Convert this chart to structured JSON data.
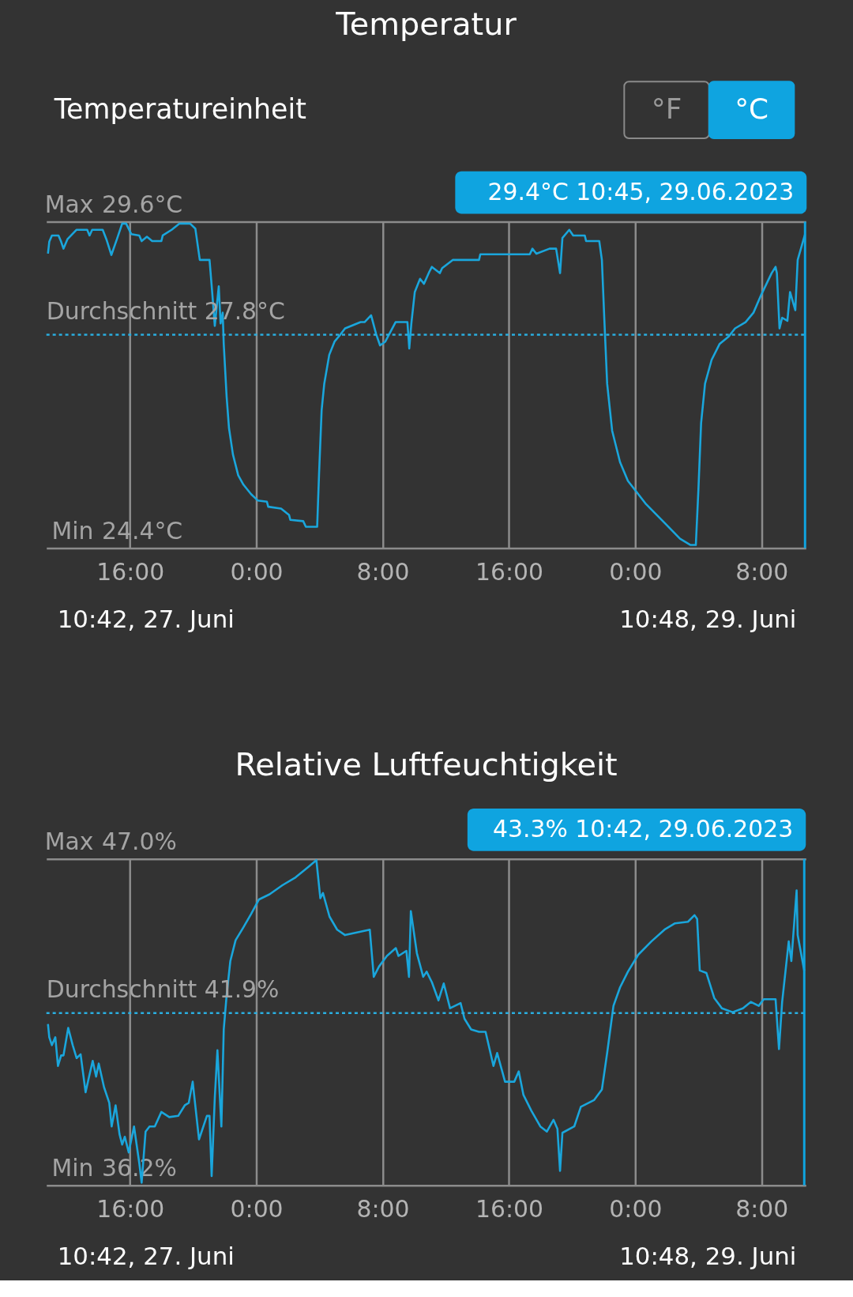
{
  "chart_data": [
    {
      "type": "line",
      "title": "Temperatur",
      "subtitle": "Temperatureinheit",
      "x": [
        "2023-06-27T10:48",
        "2023-06-27T10:53",
        "2023-06-27T11:03",
        "2023-06-27T11:28",
        "2023-06-27T11:38",
        "2023-06-27T11:47",
        "2023-06-27T12:02",
        "2023-06-27T12:36",
        "2023-06-27T13:17",
        "2023-06-27T13:26",
        "2023-06-27T13:36",
        "2023-06-27T14:16",
        "2023-06-27T14:30",
        "2023-06-27T14:49",
        "2023-06-27T15:10",
        "2023-06-27T15:30",
        "2023-06-27T15:45",
        "2023-06-27T16:05",
        "2023-06-27T16:35",
        "2023-06-27T16:44",
        "2023-06-27T17:04",
        "2023-06-27T17:24",
        "2023-06-27T17:59",
        "2023-06-27T18:04",
        "2023-06-27T18:38",
        "2023-06-27T19:08",
        "2023-06-27T19:48",
        "2023-06-27T20:08",
        "2023-06-27T20:25",
        "2023-06-27T21:02",
        "2023-06-27T21:12",
        "2023-06-27T21:22",
        "2023-06-27T21:37",
        "2023-06-27T21:44",
        "2023-06-27T21:52",
        "2023-06-27T21:56",
        "2023-06-27T22:07",
        "2023-06-27T22:16",
        "2023-06-27T22:31",
        "2023-06-27T22:51",
        "2023-06-27T23:11",
        "2023-06-27T23:40",
        "2023-06-28T00:05",
        "2023-06-28T00:40",
        "2023-06-28T00:45",
        "2023-06-28T01:34",
        "2023-06-28T02:04",
        "2023-06-28T02:09",
        "2023-06-28T02:58",
        "2023-06-28T03:08",
        "2023-06-28T03:51",
        "2023-06-28T03:58",
        "2023-06-28T04:08",
        "2023-06-28T04:18",
        "2023-06-28T04:37",
        "2023-06-28T04:57",
        "2023-06-28T05:17",
        "2023-06-28T05:37",
        "2023-06-28T06:36",
        "2023-06-28T06:51",
        "2023-06-28T07:16",
        "2023-06-28T07:35",
        "2023-06-28T07:50",
        "2023-06-28T08:10",
        "2023-06-28T08:49",
        "2023-06-28T09:34",
        "2023-06-28T09:41",
        "2023-06-28T09:49",
        "2023-06-28T10:02",
        "2023-06-28T10:22",
        "2023-06-28T10:37",
        "2023-06-28T10:57",
        "2023-06-28T11:07",
        "2023-06-28T11:37",
        "2023-06-28T11:46",
        "2023-06-28T12:26",
        "2023-06-28T14:06",
        "2023-06-28T14:11",
        "2023-06-28T17:19",
        "2023-06-28T17:29",
        "2023-06-28T17:44",
        "2023-06-28T18:34",
        "2023-06-28T18:59",
        "2023-06-28T19:14",
        "2023-06-28T19:23",
        "2023-06-28T19:49",
        "2023-06-28T20:04",
        "2023-06-28T20:48",
        "2023-06-28T20:53",
        "2023-06-28T21:43",
        "2023-06-28T21:53",
        "2023-06-28T22:02",
        "2023-06-28T22:13",
        "2023-06-28T22:32",
        "2023-06-28T23:02",
        "2023-06-28T23:32",
        "2023-06-29T00:02",
        "2023-06-29T00:41",
        "2023-06-29T01:21",
        "2023-06-29T02:01",
        "2023-06-29T02:50",
        "2023-06-29T03:30",
        "2023-06-29T03:50",
        "2023-06-29T04:00",
        "2023-06-29T04:10",
        "2023-06-29T04:25",
        "2023-06-29T04:50",
        "2023-06-29T05:20",
        "2023-06-29T05:55",
        "2023-06-29T06:19",
        "2023-06-29T06:59",
        "2023-06-29T07:29",
        "2023-06-29T07:59",
        "2023-06-29T08:38",
        "2023-06-29T08:53",
        "2023-06-29T08:58",
        "2023-06-29T09:08",
        "2023-06-29T09:18",
        "2023-06-29T09:38",
        "2023-06-29T09:48",
        "2023-06-29T10:08",
        "2023-06-29T10:17",
        "2023-06-29T10:45"
      ],
      "series": [
        {
          "color": "#1aa6dc",
          "values": [
            29.09,
            29.28,
            29.38,
            29.38,
            29.28,
            29.17,
            29.32,
            29.47,
            29.47,
            29.38,
            29.47,
            29.47,
            29.32,
            29.07,
            29.32,
            29.57,
            29.57,
            29.4,
            29.38,
            29.29,
            29.36,
            29.29,
            29.29,
            29.38,
            29.47,
            29.57,
            29.57,
            29.49,
            28.99,
            28.99,
            28.48,
            27.94,
            28.57,
            27.98,
            28.15,
            27.65,
            26.81,
            26.31,
            25.89,
            25.56,
            25.41,
            25.26,
            25.16,
            25.14,
            25.06,
            25.03,
            24.93,
            24.85,
            24.83,
            24.74,
            24.74,
            25.56,
            26.6,
            27.02,
            27.48,
            27.69,
            27.79,
            27.9,
            28.0,
            28.0,
            28.11,
            27.81,
            27.63,
            27.69,
            28.0,
            28.0,
            27.58,
            27.98,
            28.48,
            28.69,
            28.61,
            28.8,
            28.88,
            28.78,
            28.86,
            28.99,
            28.99,
            29.08,
            29.08,
            29.17,
            29.09,
            29.17,
            29.17,
            28.78,
            29.34,
            29.47,
            29.38,
            29.38,
            29.29,
            29.29,
            28.99,
            28.07,
            27.02,
            26.27,
            25.77,
            25.47,
            25.31,
            25.1,
            24.93,
            24.76,
            24.55,
            24.45,
            24.45,
            25.35,
            26.39,
            27.02,
            27.4,
            27.65,
            27.77,
            27.9,
            28.0,
            28.15,
            28.44,
            28.78,
            28.88,
            28.78,
            27.9,
            28.07,
            28.02,
            28.48,
            28.19,
            28.99,
            29.4
          ]
        }
      ],
      "xlim": [
        "2023-06-27T10:42",
        "2023-06-29T10:48"
      ],
      "xticks": [
        {
          "value": "2023-06-27T16:00",
          "label": "16:00"
        },
        {
          "value": "2023-06-28T00:00",
          "label": "0:00"
        },
        {
          "value": "2023-06-28T08:00",
          "label": "8:00"
        },
        {
          "value": "2023-06-28T16:00",
          "label": "16:00"
        },
        {
          "value": "2023-06-29T00:00",
          "label": "0:00"
        },
        {
          "value": "2023-06-29T08:00",
          "label": "8:00"
        }
      ],
      "ylim": [
        24.4,
        29.6
      ],
      "yticks": [
        {
          "value": 29.6,
          "label": "29.6°C"
        },
        {
          "value": 24.4,
          "label": "24.4°C"
        }
      ],
      "grid": true,
      "ref_lines": [
        {
          "axis": "y",
          "value": 27.8,
          "label": "Durchschnitt 27.8°C",
          "color": "#2aaee0",
          "line_style": "dotted"
        },
        {
          "axis": "x",
          "value": "2023-06-29T10:45",
          "label": "29.4°C 10:45,  29.06.2023",
          "color": "#0fa4e0",
          "line_style": "solid"
        }
      ],
      "annotations": [
        "Max",
        "Min",
        "10:42,  27. Juni",
        "10:48,  29. Juni",
        "°F",
        "°C"
      ]
    },
    {
      "type": "line",
      "title": "Relative Luftfeuchtigkeit",
      "x": [
        "2023-06-27T10:48",
        "2023-06-27T10:53",
        "2023-06-27T11:03",
        "2023-06-27T11:16",
        "2023-06-27T11:26",
        "2023-06-27T11:38",
        "2023-06-27T11:47",
        "2023-06-27T12:05",
        "2023-06-27T12:22",
        "2023-06-27T12:37",
        "2023-06-27T12:52",
        "2023-06-27T13:11",
        "2023-06-27T13:22",
        "2023-06-27T13:38",
        "2023-06-27T13:51",
        "2023-06-27T14:01",
        "2023-06-27T14:21",
        "2023-06-27T14:41",
        "2023-06-27T14:50",
        "2023-06-27T15:05",
        "2023-06-27T15:20",
        "2023-06-27T15:30",
        "2023-06-27T15:40",
        "2023-06-27T15:55",
        "2023-06-27T16:15",
        "2023-06-27T16:35",
        "2023-06-27T16:44",
        "2023-06-27T16:59",
        "2023-06-27T17:14",
        "2023-06-27T17:34",
        "2023-06-27T17:59",
        "2023-06-27T18:29",
        "2023-06-27T19:03",
        "2023-06-27T19:28",
        "2023-06-27T19:43",
        "2023-06-27T19:58",
        "2023-06-27T20:22",
        "2023-06-27T20:52",
        "2023-06-27T21:02",
        "2023-06-27T21:10",
        "2023-06-27T21:22",
        "2023-06-27T21:32",
        "2023-06-27T21:47",
        "2023-06-27T21:56",
        "2023-06-27T22:07",
        "2023-06-27T22:21",
        "2023-06-27T22:41",
        "2023-06-27T23:11",
        "2023-06-27T23:40",
        "2023-06-28T00:10",
        "2023-06-28T00:50",
        "2023-06-28T01:39",
        "2023-06-28T02:29",
        "2023-06-28T03:18",
        "2023-06-28T03:48",
        "2023-06-28T04:03",
        "2023-06-28T04:13",
        "2023-06-28T04:38",
        "2023-06-28T05:07",
        "2023-06-28T05:37",
        "2023-06-28T07:11",
        "2023-06-28T07:26",
        "2023-06-28T07:46",
        "2023-06-28T08:16",
        "2023-06-28T08:50",
        "2023-06-28T09:00",
        "2023-06-28T09:30",
        "2023-06-28T09:40",
        "2023-06-28T09:47",
        "2023-06-28T10:10",
        "2023-06-28T10:34",
        "2023-06-28T10:47",
        "2023-06-28T11:07",
        "2023-06-28T11:32",
        "2023-06-28T11:52",
        "2023-06-28T12:16",
        "2023-06-28T12:56",
        "2023-06-28T13:11",
        "2023-06-28T13:36",
        "2023-06-28T14:06",
        "2023-06-28T14:31",
        "2023-06-28T15:01",
        "2023-06-28T15:15",
        "2023-06-28T15:45",
        "2023-06-28T16:20",
        "2023-06-28T16:37",
        "2023-06-28T16:55",
        "2023-06-28T17:25",
        "2023-06-28T17:59",
        "2023-06-28T18:24",
        "2023-06-28T18:49",
        "2023-06-28T19:04",
        "2023-06-28T19:14",
        "2023-06-28T19:23",
        "2023-06-28T20:08",
        "2023-06-28T20:33",
        "2023-06-28T21:23",
        "2023-06-28T21:53",
        "2023-06-28T22:13",
        "2023-06-28T22:37",
        "2023-06-28T23:02",
        "2023-06-28T23:32",
        "2023-06-29T00:11",
        "2023-06-29T01:01",
        "2023-06-29T01:51",
        "2023-06-29T02:31",
        "2023-06-29T03:20",
        "2023-06-29T03:45",
        "2023-06-29T03:55",
        "2023-06-29T04:05",
        "2023-06-29T04:30",
        "2023-06-29T05:00",
        "2023-06-29T05:29",
        "2023-06-29T06:10",
        "2023-06-29T06:49",
        "2023-06-29T07:19",
        "2023-06-29T07:49",
        "2023-06-29T08:08",
        "2023-06-29T08:53",
        "2023-06-29T09:06",
        "2023-06-29T09:18",
        "2023-06-29T09:43",
        "2023-06-29T09:53",
        "2023-06-29T10:13",
        "2023-06-29T10:17",
        "2023-06-29T10:42"
      ],
      "series": [
        {
          "color": "#1aa6dc",
          "values": [
            41.54,
            41.1,
            40.84,
            41.1,
            40.15,
            40.5,
            40.5,
            41.41,
            40.84,
            40.41,
            40.54,
            39.28,
            39.71,
            40.32,
            39.8,
            40.23,
            39.45,
            38.93,
            38.15,
            38.85,
            37.89,
            37.55,
            37.81,
            37.29,
            38.15,
            36.94,
            36.29,
            37.98,
            38.15,
            38.15,
            38.63,
            38.46,
            38.5,
            38.85,
            38.93,
            39.63,
            37.72,
            38.5,
            38.5,
            36.51,
            39.11,
            40.67,
            38.15,
            41.36,
            42.49,
            43.62,
            44.31,
            44.74,
            45.18,
            45.66,
            45.83,
            46.13,
            46.39,
            46.74,
            46.96,
            45.7,
            45.87,
            45.09,
            44.66,
            44.48,
            44.66,
            43.1,
            43.44,
            43.79,
            44.05,
            43.79,
            43.96,
            43.1,
            45.27,
            43.88,
            43.1,
            43.27,
            42.92,
            42.32,
            42.88,
            42.06,
            42.23,
            41.71,
            41.36,
            41.28,
            41.28,
            40.15,
            40.58,
            39.63,
            39.63,
            39.97,
            39.19,
            38.67,
            38.15,
            37.98,
            38.37,
            38.07,
            36.68,
            37.94,
            38.15,
            38.8,
            39.02,
            39.37,
            40.58,
            42.14,
            42.75,
            43.27,
            43.83,
            44.27,
            44.66,
            44.87,
            44.92,
            45.14,
            45.01,
            43.31,
            43.23,
            42.4,
            42.06,
            41.93,
            42.06,
            42.27,
            42.14,
            42.36,
            42.36,
            40.71,
            42.27,
            44.27,
            43.62,
            45.96,
            44.48,
            43.3
          ]
        }
      ],
      "xlim": [
        "2023-06-27T10:42",
        "2023-06-29T10:48"
      ],
      "xticks": [
        {
          "value": "2023-06-27T16:00",
          "label": "16:00"
        },
        {
          "value": "2023-06-28T00:00",
          "label": "0:00"
        },
        {
          "value": "2023-06-28T08:00",
          "label": "8:00"
        },
        {
          "value": "2023-06-28T16:00",
          "label": "16:00"
        },
        {
          "value": "2023-06-29T00:00",
          "label": "0:00"
        },
        {
          "value": "2023-06-29T08:00",
          "label": "8:00"
        }
      ],
      "ylim": [
        36.2,
        47.0
      ],
      "yticks": [
        {
          "value": 47.0,
          "label": "47.0%"
        },
        {
          "value": 36.2,
          "label": "36.2%"
        }
      ],
      "grid": true,
      "ref_lines": [
        {
          "axis": "y",
          "value": 41.9,
          "label": "Durchschnitt 41.9%",
          "color": "#2aaee0",
          "line_style": "dotted"
        },
        {
          "axis": "x",
          "value": "2023-06-29T10:42",
          "label": "43.3% 10:42,  29.06.2023",
          "color": "#0fa4e0",
          "line_style": "solid"
        }
      ],
      "annotations": [
        "Max",
        "Min",
        "10:42,  27. Juni",
        "10:48,  29. Juni"
      ]
    }
  ]
}
